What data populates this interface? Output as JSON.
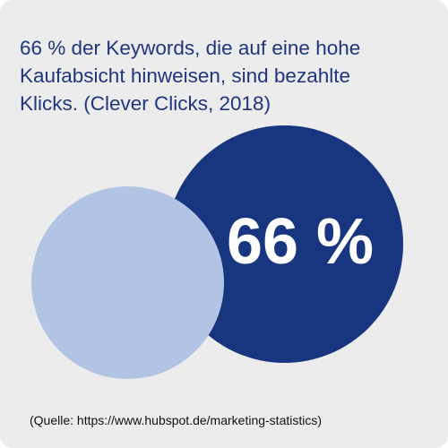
{
  "headline": {
    "line1": "66 % der Keywords, die auf eine hohe",
    "line2": "Kaufabsicht hinweisen, sind bezahlte",
    "line3": "Klicks. (Clever Clicks, 2018)"
  },
  "stat": {
    "value": "66 %"
  },
  "source": "(Quelle: https://www.hubspot.de/marketing-statistics)",
  "colors": {
    "background": "#ececec",
    "headline": "#1e3580",
    "dark_circle": "#183680",
    "light_circle": "#b2c4e3",
    "stat_text": "#ffffff"
  }
}
